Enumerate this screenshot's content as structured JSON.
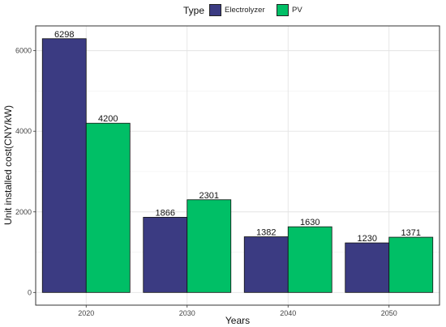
{
  "legend": {
    "title": "Type",
    "items": [
      {
        "label": "Electrolyzer",
        "color": "#3b3b82"
      },
      {
        "label": "PV",
        "color": "#00bf66"
      }
    ]
  },
  "chart_data": {
    "type": "bar",
    "categories": [
      "2020",
      "2030",
      "2040",
      "2050"
    ],
    "series": [
      {
        "name": "Electrolyzer",
        "values": [
          6298,
          1866,
          1382,
          1230
        ],
        "color": "#3b3b82"
      },
      {
        "name": "PV",
        "values": [
          4200,
          2301,
          1630,
          1371
        ],
        "color": "#00bf66"
      }
    ],
    "xlabel": "Years",
    "ylabel": "Unit installed cost(CNY/kW)",
    "ylim": [
      -315,
      6615
    ],
    "yticks": [
      0,
      2000,
      4000,
      6000
    ],
    "grid": true,
    "legend_position": "top"
  }
}
